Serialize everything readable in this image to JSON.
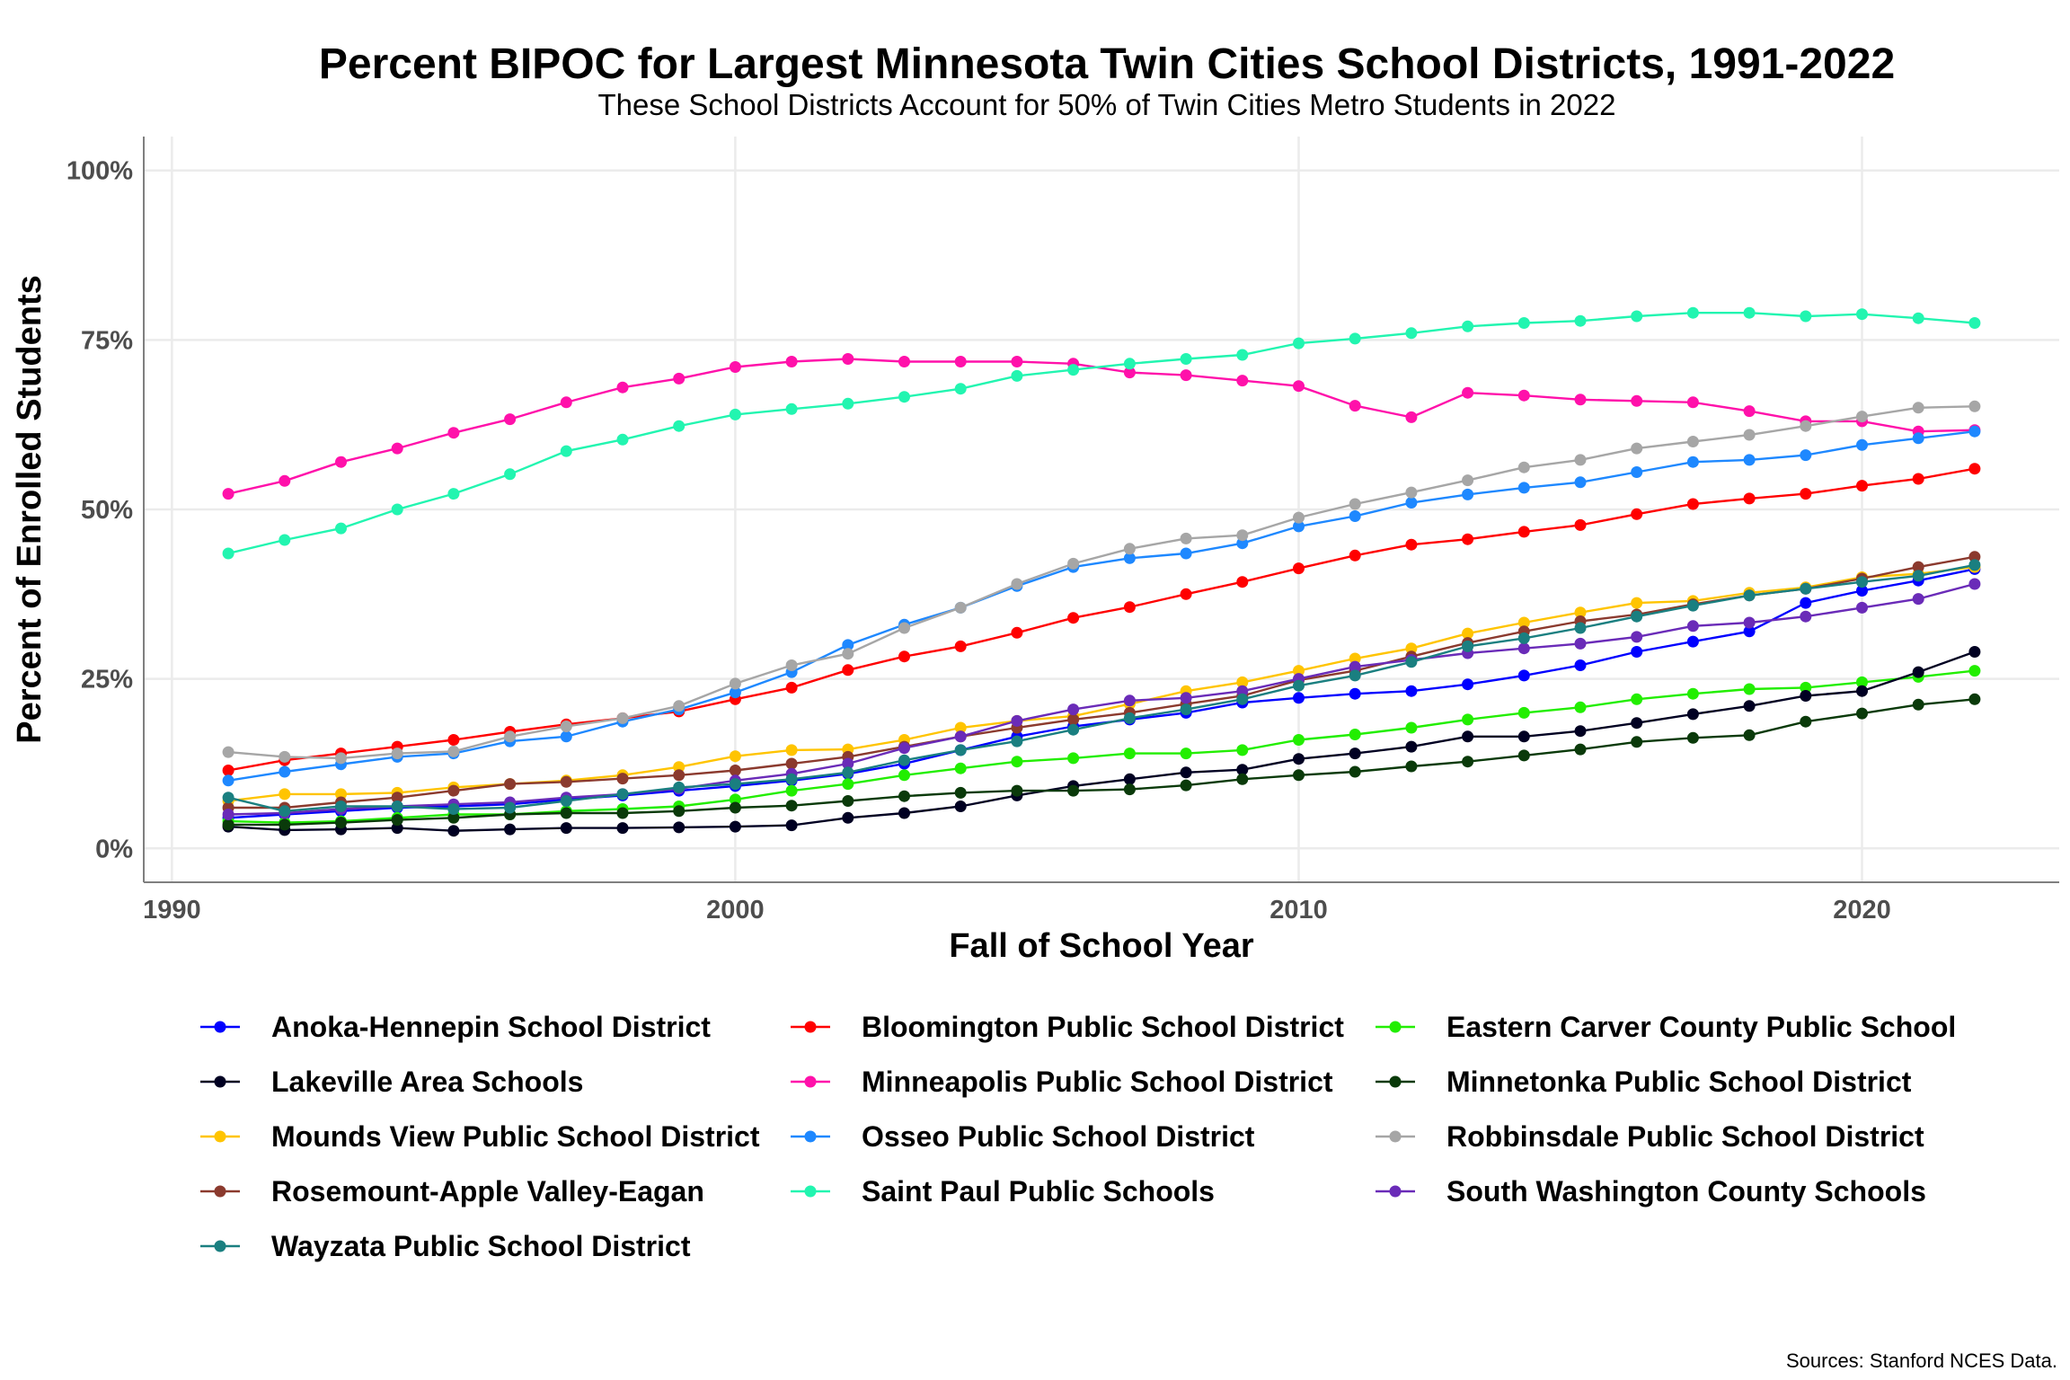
{
  "chart_data": {
    "type": "line",
    "title": "Percent BIPOC for Largest Minnesota Twin Cities School Districts, 1991-2022",
    "subtitle": "These School Districts Account for 50% of Twin Cities Metro Students in 2022",
    "xlabel": "Fall of School Year",
    "ylabel": "Percent of Enrolled Students",
    "source": "Sources: Stanford NCES Data.",
    "xlim": [
      1989.5,
      2023.5
    ],
    "ylim": [
      -0.05,
      1.05
    ],
    "x_ticks": [
      1990,
      2000,
      2010,
      2020
    ],
    "x_tick_labels": [
      "1990",
      "2000",
      "2010",
      "2020"
    ],
    "y_ticks": [
      0,
      0.25,
      0.5,
      0.75,
      1.0
    ],
    "y_tick_labels": [
      "0%",
      "25%",
      "50%",
      "75%",
      "100%"
    ],
    "grid": true,
    "legend_position": "bottom",
    "x": [
      1991,
      1992,
      1993,
      1994,
      1995,
      1996,
      1997,
      1998,
      1999,
      2000,
      2001,
      2002,
      2003,
      2004,
      2005,
      2006,
      2007,
      2008,
      2009,
      2010,
      2011,
      2012,
      2013,
      2014,
      2015,
      2016,
      2017,
      2018,
      2019,
      2020,
      2021,
      2022
    ],
    "series": [
      {
        "name": "Anoka-Hennepin School District",
        "color": "#0000ff",
        "values": [
          0.045,
          0.05,
          0.055,
          0.06,
          0.062,
          0.065,
          0.072,
          0.078,
          0.085,
          0.092,
          0.1,
          0.11,
          0.125,
          0.145,
          0.165,
          0.18,
          0.19,
          0.2,
          0.215,
          0.222,
          0.228,
          0.232,
          0.242,
          0.255,
          0.27,
          0.29,
          0.305,
          0.32,
          0.362,
          0.38,
          0.395,
          0.412
        ]
      },
      {
        "name": "Bloomington Public School District",
        "color": "#ff0000",
        "values": [
          0.115,
          0.13,
          0.14,
          0.15,
          0.16,
          0.172,
          0.183,
          0.192,
          0.202,
          0.22,
          0.237,
          0.263,
          0.283,
          0.298,
          0.318,
          0.34,
          0.356,
          0.375,
          0.393,
          0.413,
          0.432,
          0.448,
          0.456,
          0.467,
          0.477,
          0.493,
          0.508,
          0.516,
          0.523,
          0.535,
          0.545,
          0.56
        ]
      },
      {
        "name": "Eastern Carver County Public School",
        "color": "#22ee00",
        "values": [
          0.04,
          0.038,
          0.04,
          0.045,
          0.05,
          0.05,
          0.055,
          0.058,
          0.062,
          0.072,
          0.085,
          0.095,
          0.108,
          0.118,
          0.128,
          0.133,
          0.14,
          0.14,
          0.145,
          0.16,
          0.168,
          0.178,
          0.19,
          0.2,
          0.208,
          0.22,
          0.228,
          0.235,
          0.237,
          0.245,
          0.253,
          0.262
        ]
      },
      {
        "name": "Lakeville Area Schools",
        "color": "#000022",
        "values": [
          0.032,
          0.027,
          0.028,
          0.03,
          0.026,
          0.028,
          0.03,
          0.03,
          0.031,
          0.032,
          0.034,
          0.045,
          0.052,
          0.062,
          0.078,
          0.092,
          0.102,
          0.112,
          0.116,
          0.132,
          0.14,
          0.15,
          0.165,
          0.165,
          0.173,
          0.185,
          0.198,
          0.21,
          0.225,
          0.232,
          0.26,
          0.29
        ]
      },
      {
        "name": "Minneapolis Public School District",
        "color": "#ff11aa",
        "values": [
          0.523,
          0.542,
          0.57,
          0.59,
          0.613,
          0.633,
          0.658,
          0.68,
          0.693,
          0.71,
          0.718,
          0.722,
          0.718,
          0.718,
          0.718,
          0.715,
          0.702,
          0.698,
          0.69,
          0.682,
          0.653,
          0.636,
          0.672,
          0.668,
          0.662,
          0.66,
          0.658,
          0.645,
          0.63,
          0.63,
          0.615,
          0.617
        ]
      },
      {
        "name": "Minnetonka Public School District",
        "color": "#0a3a0a",
        "values": [
          0.035,
          0.035,
          0.038,
          0.042,
          0.045,
          0.05,
          0.052,
          0.052,
          0.055,
          0.06,
          0.063,
          0.07,
          0.077,
          0.082,
          0.085,
          0.085,
          0.087,
          0.093,
          0.102,
          0.108,
          0.113,
          0.121,
          0.128,
          0.137,
          0.146,
          0.157,
          0.163,
          0.167,
          0.187,
          0.199,
          0.212,
          0.22
        ]
      },
      {
        "name": "Mounds View Public School District",
        "color": "#ffc400",
        "values": [
          0.07,
          0.08,
          0.08,
          0.082,
          0.09,
          0.095,
          0.1,
          0.108,
          0.12,
          0.136,
          0.145,
          0.146,
          0.16,
          0.178,
          0.188,
          0.195,
          0.213,
          0.232,
          0.245,
          0.262,
          0.28,
          0.295,
          0.317,
          0.333,
          0.348,
          0.362,
          0.365,
          0.377,
          0.385,
          0.4,
          0.405,
          0.415
        ]
      },
      {
        "name": "Osseo Public School District",
        "color": "#1e88ff",
        "values": [
          0.1,
          0.113,
          0.124,
          0.135,
          0.14,
          0.158,
          0.165,
          0.187,
          0.205,
          0.23,
          0.26,
          0.3,
          0.33,
          0.355,
          0.387,
          0.415,
          0.428,
          0.435,
          0.45,
          0.475,
          0.49,
          0.51,
          0.522,
          0.532,
          0.54,
          0.555,
          0.57,
          0.573,
          0.58,
          0.595,
          0.605,
          0.615
        ]
      },
      {
        "name": "Robbinsdale Public School District",
        "color": "#a6a6a6",
        "values": [
          0.142,
          0.135,
          0.133,
          0.14,
          0.143,
          0.165,
          0.18,
          0.192,
          0.21,
          0.243,
          0.27,
          0.287,
          0.325,
          0.355,
          0.39,
          0.42,
          0.442,
          0.457,
          0.462,
          0.488,
          0.508,
          0.525,
          0.543,
          0.562,
          0.573,
          0.59,
          0.6,
          0.61,
          0.623,
          0.637,
          0.65,
          0.652
        ]
      },
      {
        "name": "Rosemount-Apple Valley-Eagan",
        "color": "#8b3a2e",
        "values": [
          0.06,
          0.06,
          0.068,
          0.075,
          0.085,
          0.095,
          0.098,
          0.103,
          0.108,
          0.115,
          0.125,
          0.135,
          0.15,
          0.165,
          0.178,
          0.19,
          0.2,
          0.213,
          0.225,
          0.248,
          0.262,
          0.283,
          0.303,
          0.32,
          0.335,
          0.345,
          0.36,
          0.373,
          0.383,
          0.398,
          0.415,
          0.43
        ]
      },
      {
        "name": "Saint Paul Public Schools",
        "color": "#22f5b0",
        "values": [
          0.435,
          0.455,
          0.472,
          0.5,
          0.523,
          0.552,
          0.586,
          0.603,
          0.623,
          0.64,
          0.648,
          0.656,
          0.666,
          0.678,
          0.697,
          0.706,
          0.715,
          0.722,
          0.728,
          0.745,
          0.752,
          0.76,
          0.77,
          0.775,
          0.778,
          0.785,
          0.79,
          0.79,
          0.785,
          0.788,
          0.782,
          0.775
        ]
      },
      {
        "name": "South Washington County Schools",
        "color": "#6a2bb8",
        "values": [
          0.05,
          0.052,
          0.058,
          0.062,
          0.065,
          0.068,
          0.075,
          0.08,
          0.088,
          0.1,
          0.11,
          0.125,
          0.148,
          0.165,
          0.188,
          0.205,
          0.218,
          0.222,
          0.232,
          0.25,
          0.268,
          0.278,
          0.288,
          0.295,
          0.302,
          0.312,
          0.328,
          0.333,
          0.342,
          0.355,
          0.368,
          0.39
        ]
      },
      {
        "name": "Wayzata Public School District",
        "color": "#1a7f80",
        "values": [
          0.075,
          0.055,
          0.062,
          0.062,
          0.058,
          0.06,
          0.07,
          0.08,
          0.09,
          0.095,
          0.102,
          0.112,
          0.13,
          0.145,
          0.158,
          0.175,
          0.192,
          0.205,
          0.22,
          0.24,
          0.255,
          0.275,
          0.298,
          0.31,
          0.325,
          0.342,
          0.358,
          0.373,
          0.383,
          0.393,
          0.402,
          0.418
        ]
      }
    ]
  }
}
